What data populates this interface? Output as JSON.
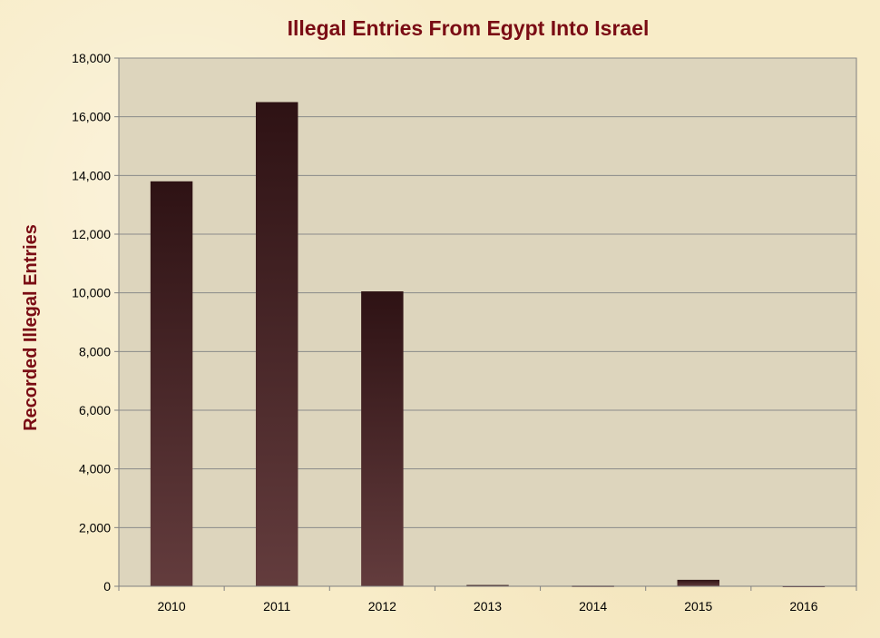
{
  "chart_data": {
    "type": "bar",
    "title": "Illegal Entries From Egypt Into Israel",
    "ylabel": "Recorded Illegal Entries",
    "xlabel": "",
    "categories": [
      "2010",
      "2011",
      "2012",
      "2013",
      "2014",
      "2015",
      "2016"
    ],
    "values": [
      13800,
      16500,
      10050,
      43,
      21,
      220,
      15
    ],
    "ylim": [
      0,
      18000
    ],
    "yticks": [
      "0",
      "2,000",
      "4,000",
      "6,000",
      "8,000",
      "10,000",
      "12,000",
      "14,000",
      "16,000",
      "18,000"
    ],
    "ytick_values": [
      0,
      2000,
      4000,
      6000,
      8000,
      10000,
      12000,
      14000,
      16000,
      18000
    ],
    "grid": true,
    "legend": "none",
    "colors": {
      "bar_top": "#2e1214",
      "bar_bottom": "#633c3d",
      "plot_background": "#ddd5bd",
      "title": "#7a0c14"
    }
  }
}
